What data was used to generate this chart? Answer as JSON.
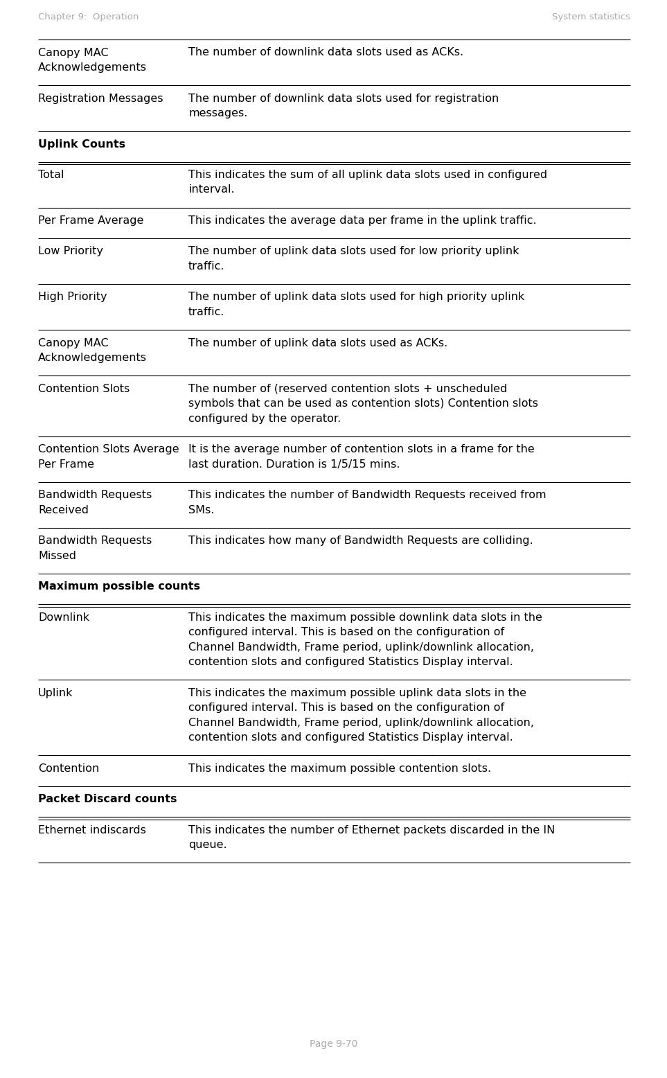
{
  "header_left": "Chapter 9:  Operation",
  "header_right": "System statistics",
  "footer": "Page 9-70",
  "header_color": "#aaaaaa",
  "background_color": "#ffffff",
  "text_color": "#000000",
  "line_color": "#000000",
  "rows": [
    {
      "col1": "Canopy MAC\nAcknowledgements",
      "col2": "The number of downlink data slots used as ACKs.",
      "bold_col1": false,
      "section_header": false
    },
    {
      "col1": "Registration Messages",
      "col2": "The number of downlink data slots used for registration\nmessages.",
      "bold_col1": false,
      "section_header": false
    },
    {
      "col1": "Uplink Counts",
      "col2": "",
      "bold_col1": true,
      "section_header": true
    },
    {
      "col1": "Total",
      "col2": "This indicates the sum of all uplink data slots used in configured\ninterval.",
      "bold_col1": false,
      "section_header": false
    },
    {
      "col1": "Per Frame Average",
      "col2": "This indicates the average data per frame in the uplink traffic.",
      "bold_col1": false,
      "section_header": false
    },
    {
      "col1": "Low Priority",
      "col2": "The number of uplink data slots used for low priority uplink\ntraffic.",
      "bold_col1": false,
      "section_header": false
    },
    {
      "col1": "High Priority",
      "col2": "The number of uplink data slots used for high priority uplink\ntraffic.",
      "bold_col1": false,
      "section_header": false
    },
    {
      "col1": "Canopy MAC\nAcknowledgements",
      "col2": "The number of uplink data slots used as ACKs.",
      "bold_col1": false,
      "section_header": false
    },
    {
      "col1": "Contention Slots",
      "col2": "The number of (reserved contention slots + unscheduled\nsymbols that can be used as contention slots) Contention slots\nconfigured by the operator.",
      "bold_col1": false,
      "section_header": false
    },
    {
      "col1": "Contention Slots Average\nPer Frame",
      "col2": "It is the average number of contention slots in a frame for the\nlast duration. Duration is 1/5/15 mins.",
      "bold_col1": false,
      "section_header": false
    },
    {
      "col1": "Bandwidth Requests\nReceived",
      "col2": "This indicates the number of Bandwidth Requests received from\nSMs.",
      "bold_col1": false,
      "section_header": false
    },
    {
      "col1": "Bandwidth Requests\nMissed",
      "col2": "This indicates how many of Bandwidth Requests are colliding.",
      "bold_col1": false,
      "section_header": false
    },
    {
      "col1": "Maximum possible counts",
      "col2": "",
      "bold_col1": true,
      "section_header": true
    },
    {
      "col1": "Downlink",
      "col2": "This indicates the maximum possible downlink data slots in the\nconfigured interval. This is based on the configuration of\nChannel Bandwidth, Frame period, uplink/downlink allocation,\ncontention slots and configured Statistics Display interval.",
      "bold_col1": false,
      "section_header": false
    },
    {
      "col1": "Uplink",
      "col2": "This indicates the maximum possible uplink data slots in the\nconfigured interval. This is based on the configuration of\nChannel Bandwidth, Frame period, uplink/downlink allocation,\ncontention slots and configured Statistics Display interval.",
      "bold_col1": false,
      "section_header": false
    },
    {
      "col1": "Contention",
      "col2": "This indicates the maximum possible contention slots.",
      "bold_col1": false,
      "section_header": false
    },
    {
      "col1": "Packet Discard counts",
      "col2": "",
      "bold_col1": true,
      "section_header": true
    },
    {
      "col1": "Ethernet indiscards",
      "col2": "This indicates the number of Ethernet packets discarded in the IN\nqueue.",
      "bold_col1": false,
      "section_header": false
    }
  ]
}
